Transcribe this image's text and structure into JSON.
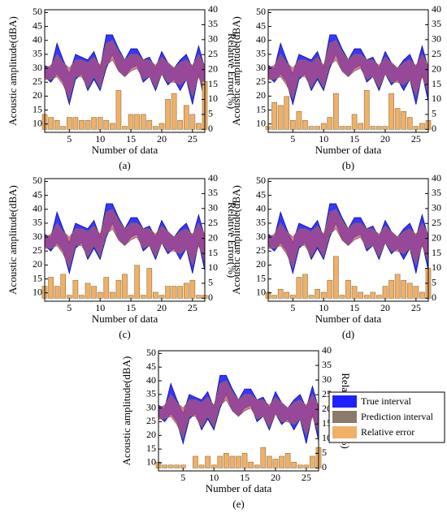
{
  "chart_data": [
    {
      "type": "interval",
      "panel": "(a)",
      "x_label": "Number of data",
      "y_label": "Acoustic amplitude(dBA)",
      "y2_label": "Relative Error(%)",
      "x": [
        1,
        2,
        3,
        4,
        5,
        6,
        7,
        8,
        9,
        10,
        11,
        12,
        13,
        14,
        15,
        16,
        17,
        18,
        19,
        20,
        21,
        22,
        23,
        24,
        25,
        26,
        27
      ],
      "xlim": [
        1,
        27
      ],
      "xticks": [
        5,
        10,
        15,
        20,
        25
      ],
      "ylim": [
        7,
        51
      ],
      "yticks": [
        10,
        15,
        20,
        25,
        30,
        35,
        40,
        45,
        50
      ],
      "y2lim": [
        -1,
        40
      ],
      "y2ticks": [
        0,
        5,
        10,
        15,
        20,
        25,
        30,
        35,
        40
      ],
      "series": [
        {
          "color": "#2020ff",
          "upper": [
            31,
            30,
            39,
            33,
            28,
            35,
            34,
            33,
            36,
            30,
            42,
            42,
            37,
            33,
            37,
            37,
            33,
            34,
            30,
            36,
            32,
            30,
            33,
            35,
            30,
            38,
            30
          ],
          "lower": [
            27,
            25,
            28,
            25,
            17,
            26,
            28,
            22,
            26,
            22,
            30,
            35,
            29,
            27,
            30,
            31,
            25,
            27,
            22,
            28,
            24,
            26,
            22,
            26,
            17,
            28,
            18
          ]
        },
        {
          "color": "#c2506e",
          "upper": [
            30,
            31,
            35,
            32,
            30,
            33,
            33,
            32,
            34,
            31,
            39,
            40,
            36,
            33,
            35,
            35,
            33,
            33,
            31,
            34,
            32,
            30,
            32,
            33,
            31,
            35,
            31
          ],
          "lower": [
            26,
            26,
            27,
            24,
            19,
            27,
            27,
            23,
            27,
            23,
            31,
            33,
            29,
            27,
            29,
            30,
            26,
            27,
            23,
            28,
            25,
            25,
            24,
            26,
            20,
            27,
            21
          ]
        },
        {
          "color": "#f0b068",
          "axis": "y2",
          "values": [
            5,
            4,
            3,
            1,
            4,
            4,
            3,
            3,
            4,
            4,
            3,
            2,
            13,
            1,
            5,
            5,
            5,
            3,
            1,
            2,
            10,
            12,
            3,
            8,
            5,
            2,
            16
          ]
        }
      ]
    },
    {
      "type": "interval",
      "panel": "(b)",
      "x_label": "Number of data",
      "y_label": "Acoustic amplitude(dBA)",
      "y2_label": "Relative Error(%)",
      "x": [
        1,
        2,
        3,
        4,
        5,
        6,
        7,
        8,
        9,
        10,
        11,
        12,
        13,
        14,
        15,
        16,
        17,
        18,
        19,
        20,
        21,
        22,
        23,
        24,
        25,
        26,
        27
      ],
      "xlim": [
        1,
        27
      ],
      "xticks": [
        5,
        10,
        15,
        20,
        25
      ],
      "ylim": [
        7,
        51
      ],
      "yticks": [
        10,
        15,
        20,
        25,
        30,
        35,
        40,
        45,
        50
      ],
      "y2lim": [
        -1,
        40
      ],
      "y2ticks": [
        0,
        5,
        10,
        15,
        20,
        25,
        30,
        35,
        40
      ],
      "series": [
        {
          "color": "#2020ff",
          "upper": [
            31,
            30,
            39,
            33,
            28,
            35,
            34,
            33,
            36,
            30,
            42,
            42,
            37,
            33,
            37,
            37,
            33,
            34,
            30,
            36,
            32,
            30,
            33,
            35,
            30,
            38,
            30
          ],
          "lower": [
            27,
            25,
            28,
            25,
            17,
            26,
            28,
            22,
            26,
            22,
            30,
            35,
            29,
            27,
            30,
            31,
            25,
            27,
            22,
            28,
            24,
            26,
            22,
            26,
            17,
            28,
            18
          ]
        },
        {
          "color": "#c2506e",
          "upper": [
            30,
            31,
            35,
            32,
            30,
            33,
            33,
            32,
            34,
            31,
            39,
            40,
            36,
            33,
            35,
            35,
            33,
            33,
            31,
            34,
            32,
            30,
            32,
            33,
            31,
            35,
            31
          ],
          "lower": [
            26,
            26,
            27,
            24,
            19,
            27,
            27,
            23,
            27,
            23,
            31,
            33,
            29,
            27,
            29,
            30,
            26,
            27,
            23,
            28,
            25,
            25,
            24,
            26,
            20,
            27,
            21
          ]
        },
        {
          "color": "#f0b068",
          "axis": "y2",
          "values": [
            1,
            9,
            8,
            11,
            3,
            6,
            3,
            1,
            1,
            2,
            4,
            12,
            1,
            1,
            5,
            2,
            13,
            1,
            1,
            1,
            12,
            7,
            6,
            4,
            1,
            2,
            3
          ]
        }
      ]
    },
    {
      "type": "interval",
      "panel": "(c)",
      "x_label": "Number of data",
      "y_label": "Acoustic amplitude(dBA)",
      "y2_label": "Relative Error(%)",
      "x": [
        1,
        2,
        3,
        4,
        5,
        6,
        7,
        8,
        9,
        10,
        11,
        12,
        13,
        14,
        15,
        16,
        17,
        18,
        19,
        20,
        21,
        22,
        23,
        24,
        25,
        26,
        27
      ],
      "xlim": [
        1,
        27
      ],
      "xticks": [
        5,
        10,
        15,
        20,
        25
      ],
      "ylim": [
        7,
        51
      ],
      "yticks": [
        10,
        15,
        20,
        25,
        30,
        35,
        40,
        45,
        50
      ],
      "y2lim": [
        -1,
        40
      ],
      "y2ticks": [
        0,
        5,
        10,
        15,
        20,
        25,
        30,
        35,
        40
      ],
      "series": [
        {
          "color": "#2020ff",
          "upper": [
            31,
            30,
            39,
            33,
            28,
            35,
            34,
            33,
            36,
            30,
            42,
            42,
            37,
            33,
            37,
            37,
            33,
            34,
            30,
            36,
            32,
            30,
            33,
            35,
            30,
            38,
            30
          ],
          "lower": [
            27,
            25,
            28,
            25,
            17,
            26,
            28,
            22,
            26,
            22,
            30,
            35,
            29,
            27,
            30,
            31,
            25,
            27,
            22,
            28,
            24,
            26,
            22,
            26,
            17,
            28,
            18
          ]
        },
        {
          "color": "#c2506e",
          "upper": [
            30,
            31,
            35,
            32,
            30,
            33,
            33,
            32,
            34,
            31,
            39,
            40,
            36,
            33,
            35,
            35,
            33,
            33,
            31,
            34,
            32,
            30,
            32,
            33,
            31,
            35,
            31
          ],
          "lower": [
            26,
            26,
            27,
            24,
            19,
            27,
            27,
            23,
            27,
            23,
            31,
            33,
            29,
            27,
            29,
            30,
            26,
            27,
            23,
            28,
            25,
            25,
            24,
            26,
            20,
            27,
            21
          ]
        },
        {
          "color": "#f0b068",
          "axis": "y2",
          "values": [
            4,
            7,
            4,
            8,
            1,
            6,
            1,
            5,
            4,
            2,
            7,
            2,
            6,
            8,
            1,
            11,
            1,
            10,
            2,
            1,
            4,
            4,
            4,
            5,
            6,
            1,
            1
          ]
        }
      ]
    },
    {
      "type": "interval",
      "panel": "(d)",
      "x_label": "Number of data",
      "y_label": "Acoustic amplitude(dBA)",
      "y2_label": "Relative Error(%)",
      "x": [
        1,
        2,
        3,
        4,
        5,
        6,
        7,
        8,
        9,
        10,
        11,
        12,
        13,
        14,
        15,
        16,
        17,
        18,
        19,
        20,
        21,
        22,
        23,
        24,
        25,
        26,
        27
      ],
      "xlim": [
        1,
        27
      ],
      "xticks": [
        5,
        10,
        15,
        20,
        25
      ],
      "ylim": [
        7,
        51
      ],
      "yticks": [
        10,
        15,
        20,
        25,
        30,
        35,
        40,
        45,
        50
      ],
      "y2lim": [
        -1,
        40
      ],
      "y2ticks": [
        0,
        5,
        10,
        15,
        20,
        25,
        30,
        35,
        40
      ],
      "series": [
        {
          "color": "#2020ff",
          "upper": [
            31,
            30,
            39,
            33,
            28,
            35,
            34,
            33,
            36,
            30,
            42,
            42,
            37,
            33,
            37,
            37,
            33,
            34,
            30,
            36,
            32,
            30,
            33,
            35,
            30,
            38,
            30
          ],
          "lower": [
            27,
            25,
            28,
            25,
            17,
            26,
            28,
            22,
            26,
            22,
            30,
            35,
            29,
            27,
            30,
            31,
            25,
            27,
            22,
            28,
            24,
            26,
            22,
            26,
            17,
            28,
            18
          ]
        },
        {
          "color": "#c2506e",
          "upper": [
            30,
            31,
            35,
            32,
            30,
            33,
            33,
            32,
            34,
            31,
            39,
            40,
            36,
            33,
            35,
            35,
            33,
            33,
            31,
            34,
            32,
            30,
            32,
            33,
            31,
            35,
            31
          ],
          "lower": [
            26,
            26,
            27,
            24,
            19,
            27,
            27,
            23,
            27,
            23,
            31,
            33,
            29,
            27,
            29,
            30,
            26,
            27,
            23,
            28,
            25,
            25,
            24,
            26,
            20,
            27,
            21
          ]
        },
        {
          "color": "#f0b068",
          "axis": "y2",
          "values": [
            2,
            1,
            3,
            2,
            1,
            7,
            8,
            1,
            3,
            2,
            6,
            14,
            1,
            6,
            4,
            2,
            1,
            2,
            1,
            4,
            6,
            8,
            6,
            5,
            4,
            2,
            10
          ]
        }
      ]
    },
    {
      "type": "interval",
      "panel": "(e)",
      "x_label": "Number of data",
      "y_label": "Acoustic amplitude(dBA)",
      "y2_label": "Relative Error(%)",
      "x": [
        1,
        2,
        3,
        4,
        5,
        6,
        7,
        8,
        9,
        10,
        11,
        12,
        13,
        14,
        15,
        16,
        17,
        18,
        19,
        20,
        21,
        22,
        23,
        24,
        25,
        26,
        27
      ],
      "xlim": [
        1,
        27
      ],
      "xticks": [
        5,
        10,
        15,
        20,
        25
      ],
      "ylim": [
        7,
        51
      ],
      "yticks": [
        10,
        15,
        20,
        25,
        30,
        35,
        40,
        45,
        50
      ],
      "y2lim": [
        -1,
        40
      ],
      "y2ticks": [
        0,
        5,
        10,
        15,
        20,
        25,
        30,
        35,
        40
      ],
      "legend": "right",
      "series": [
        {
          "name": "True interval",
          "color": "#2020ff",
          "upper": [
            31,
            30,
            39,
            33,
            28,
            35,
            34,
            33,
            36,
            30,
            42,
            42,
            37,
            33,
            37,
            37,
            33,
            34,
            30,
            36,
            32,
            30,
            33,
            35,
            30,
            38,
            30
          ],
          "lower": [
            27,
            25,
            28,
            25,
            17,
            26,
            28,
            22,
            26,
            22,
            30,
            35,
            29,
            27,
            30,
            31,
            25,
            27,
            22,
            28,
            24,
            26,
            22,
            26,
            17,
            28,
            18
          ]
        },
        {
          "name": "Prediction interval",
          "color": "#c2506e",
          "upper": [
            30,
            31,
            35,
            32,
            30,
            33,
            33,
            32,
            34,
            31,
            39,
            40,
            36,
            33,
            35,
            35,
            33,
            33,
            31,
            34,
            32,
            30,
            32,
            33,
            31,
            35,
            31
          ],
          "lower": [
            26,
            26,
            27,
            24,
            19,
            27,
            27,
            23,
            27,
            23,
            31,
            33,
            29,
            27,
            29,
            30,
            26,
            27,
            23,
            28,
            25,
            25,
            24,
            26,
            20,
            27,
            21
          ]
        },
        {
          "name": "Relative error",
          "color": "#f0b068",
          "axis": "y2",
          "values": [
            2,
            1,
            1,
            1,
            1,
            0,
            4,
            1,
            4,
            1,
            4,
            5,
            4,
            4,
            5,
            2,
            1,
            7,
            4,
            3,
            4,
            5,
            2,
            1,
            1,
            4,
            7
          ]
        }
      ]
    }
  ]
}
